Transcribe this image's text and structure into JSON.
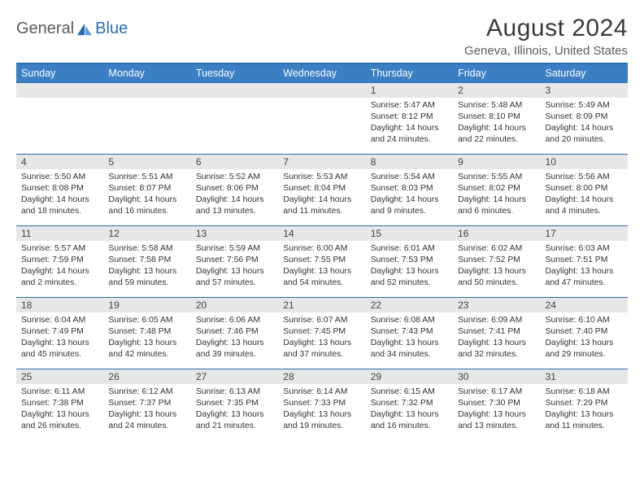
{
  "logo": {
    "text1": "General",
    "text2": "Blue"
  },
  "title": "August 2024",
  "location": "Geneva, Illinois, United States",
  "colors": {
    "header_bg": "#3a7fc4",
    "header_border": "#2a6bb0",
    "row_border": "#2a6bb0",
    "daynum_bg": "#e7e7e7",
    "text_dark": "#333333",
    "logo_gray": "#5a5a5a",
    "logo_blue": "#2a6bb0"
  },
  "day_headers": [
    "Sunday",
    "Monday",
    "Tuesday",
    "Wednesday",
    "Thursday",
    "Friday",
    "Saturday"
  ],
  "weeks": [
    [
      null,
      null,
      null,
      null,
      {
        "n": "1",
        "sr": "5:47 AM",
        "ss": "8:12 PM",
        "dl": "14 hours and 24 minutes."
      },
      {
        "n": "2",
        "sr": "5:48 AM",
        "ss": "8:10 PM",
        "dl": "14 hours and 22 minutes."
      },
      {
        "n": "3",
        "sr": "5:49 AM",
        "ss": "8:09 PM",
        "dl": "14 hours and 20 minutes."
      }
    ],
    [
      {
        "n": "4",
        "sr": "5:50 AM",
        "ss": "8:08 PM",
        "dl": "14 hours and 18 minutes."
      },
      {
        "n": "5",
        "sr": "5:51 AM",
        "ss": "8:07 PM",
        "dl": "14 hours and 16 minutes."
      },
      {
        "n": "6",
        "sr": "5:52 AM",
        "ss": "8:06 PM",
        "dl": "14 hours and 13 minutes."
      },
      {
        "n": "7",
        "sr": "5:53 AM",
        "ss": "8:04 PM",
        "dl": "14 hours and 11 minutes."
      },
      {
        "n": "8",
        "sr": "5:54 AM",
        "ss": "8:03 PM",
        "dl": "14 hours and 9 minutes."
      },
      {
        "n": "9",
        "sr": "5:55 AM",
        "ss": "8:02 PM",
        "dl": "14 hours and 6 minutes."
      },
      {
        "n": "10",
        "sr": "5:56 AM",
        "ss": "8:00 PM",
        "dl": "14 hours and 4 minutes."
      }
    ],
    [
      {
        "n": "11",
        "sr": "5:57 AM",
        "ss": "7:59 PM",
        "dl": "14 hours and 2 minutes."
      },
      {
        "n": "12",
        "sr": "5:58 AM",
        "ss": "7:58 PM",
        "dl": "13 hours and 59 minutes."
      },
      {
        "n": "13",
        "sr": "5:59 AM",
        "ss": "7:56 PM",
        "dl": "13 hours and 57 minutes."
      },
      {
        "n": "14",
        "sr": "6:00 AM",
        "ss": "7:55 PM",
        "dl": "13 hours and 54 minutes."
      },
      {
        "n": "15",
        "sr": "6:01 AM",
        "ss": "7:53 PM",
        "dl": "13 hours and 52 minutes."
      },
      {
        "n": "16",
        "sr": "6:02 AM",
        "ss": "7:52 PM",
        "dl": "13 hours and 50 minutes."
      },
      {
        "n": "17",
        "sr": "6:03 AM",
        "ss": "7:51 PM",
        "dl": "13 hours and 47 minutes."
      }
    ],
    [
      {
        "n": "18",
        "sr": "6:04 AM",
        "ss": "7:49 PM",
        "dl": "13 hours and 45 minutes."
      },
      {
        "n": "19",
        "sr": "6:05 AM",
        "ss": "7:48 PM",
        "dl": "13 hours and 42 minutes."
      },
      {
        "n": "20",
        "sr": "6:06 AM",
        "ss": "7:46 PM",
        "dl": "13 hours and 39 minutes."
      },
      {
        "n": "21",
        "sr": "6:07 AM",
        "ss": "7:45 PM",
        "dl": "13 hours and 37 minutes."
      },
      {
        "n": "22",
        "sr": "6:08 AM",
        "ss": "7:43 PM",
        "dl": "13 hours and 34 minutes."
      },
      {
        "n": "23",
        "sr": "6:09 AM",
        "ss": "7:41 PM",
        "dl": "13 hours and 32 minutes."
      },
      {
        "n": "24",
        "sr": "6:10 AM",
        "ss": "7:40 PM",
        "dl": "13 hours and 29 minutes."
      }
    ],
    [
      {
        "n": "25",
        "sr": "6:11 AM",
        "ss": "7:38 PM",
        "dl": "13 hours and 26 minutes."
      },
      {
        "n": "26",
        "sr": "6:12 AM",
        "ss": "7:37 PM",
        "dl": "13 hours and 24 minutes."
      },
      {
        "n": "27",
        "sr": "6:13 AM",
        "ss": "7:35 PM",
        "dl": "13 hours and 21 minutes."
      },
      {
        "n": "28",
        "sr": "6:14 AM",
        "ss": "7:33 PM",
        "dl": "13 hours and 19 minutes."
      },
      {
        "n": "29",
        "sr": "6:15 AM",
        "ss": "7:32 PM",
        "dl": "13 hours and 16 minutes."
      },
      {
        "n": "30",
        "sr": "6:17 AM",
        "ss": "7:30 PM",
        "dl": "13 hours and 13 minutes."
      },
      {
        "n": "31",
        "sr": "6:18 AM",
        "ss": "7:29 PM",
        "dl": "13 hours and 11 minutes."
      }
    ]
  ],
  "labels": {
    "sunrise": "Sunrise:",
    "sunset": "Sunset:",
    "daylight": "Daylight:"
  }
}
